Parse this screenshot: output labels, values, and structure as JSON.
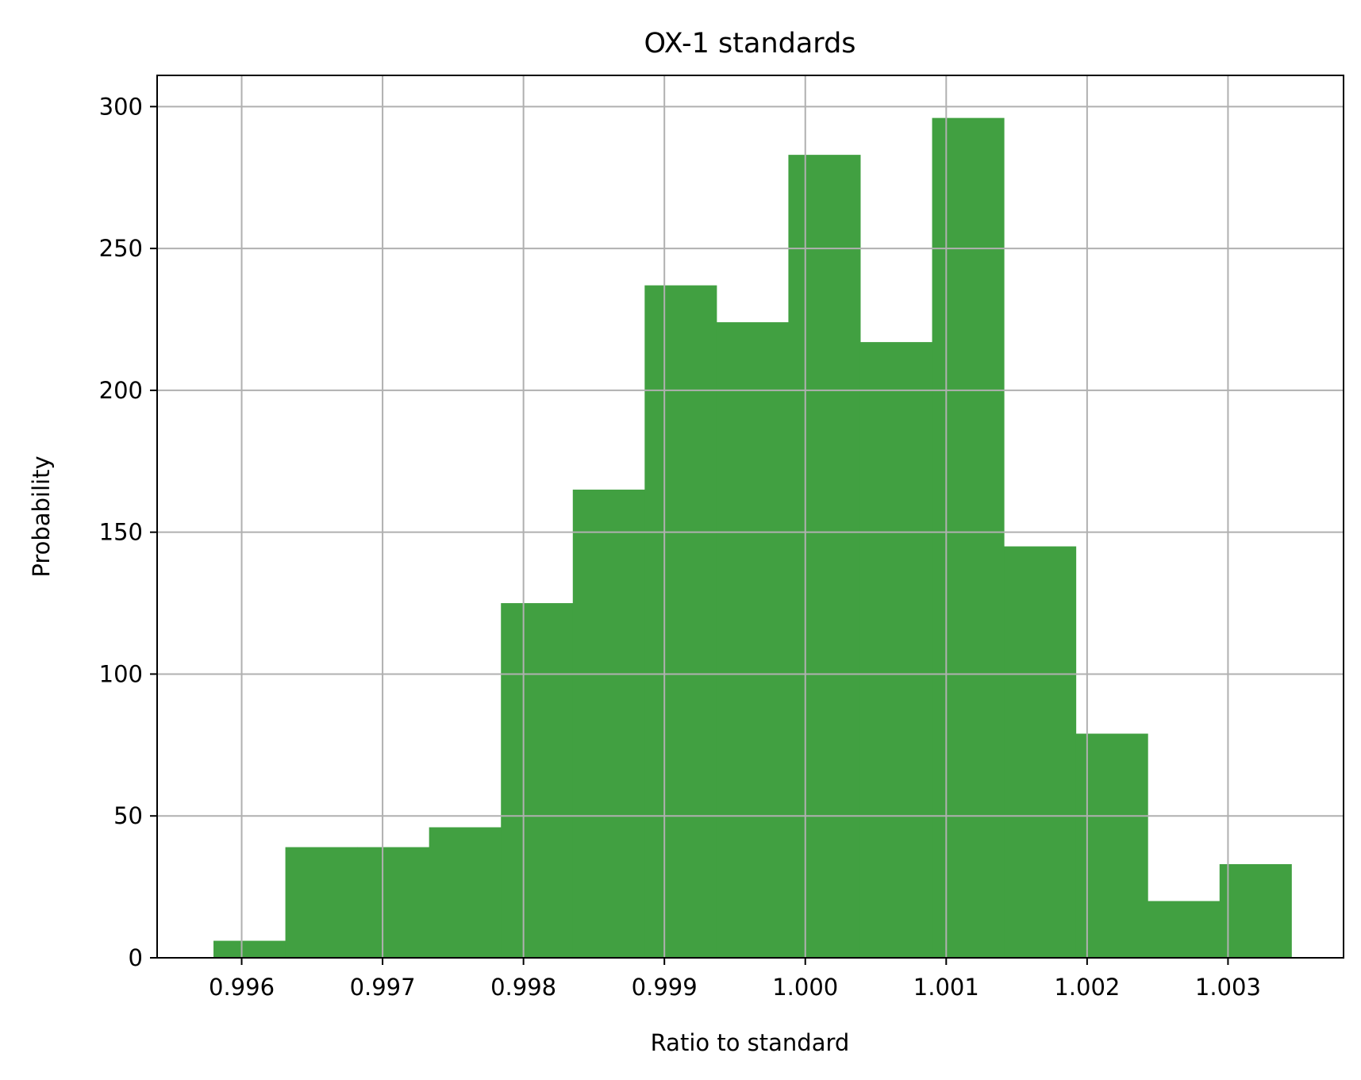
{
  "chart_data": {
    "type": "bar",
    "title": "OX-1 standards",
    "xlabel": "Ratio to standard",
    "ylabel": "Probability",
    "bin_edges": [
      0.9958,
      0.99631,
      0.99682,
      0.99733,
      0.99784,
      0.99835,
      0.99886,
      0.99937,
      0.99988,
      1.00039,
      1.0009,
      1.00141,
      1.00192,
      1.00243,
      1.00294,
      1.00345
    ],
    "values": [
      6,
      39,
      39,
      46,
      125,
      165,
      237,
      224,
      283,
      217,
      296,
      145,
      79,
      20,
      33
    ],
    "xlim": [
      0.9954,
      1.00382
    ],
    "ylim": [
      0,
      311
    ],
    "xticks": [
      0.996,
      0.997,
      0.998,
      0.999,
      1.0,
      1.001,
      1.002,
      1.003
    ],
    "xtick_labels": [
      "0.996",
      "0.997",
      "0.998",
      "0.999",
      "1.000",
      "1.001",
      "1.002",
      "1.003"
    ],
    "yticks": [
      0,
      50,
      100,
      150,
      200,
      250,
      300
    ],
    "ytick_labels": [
      "0",
      "50",
      "100",
      "150",
      "200",
      "250",
      "300"
    ],
    "grid": true,
    "bar_color": "#41a041"
  }
}
